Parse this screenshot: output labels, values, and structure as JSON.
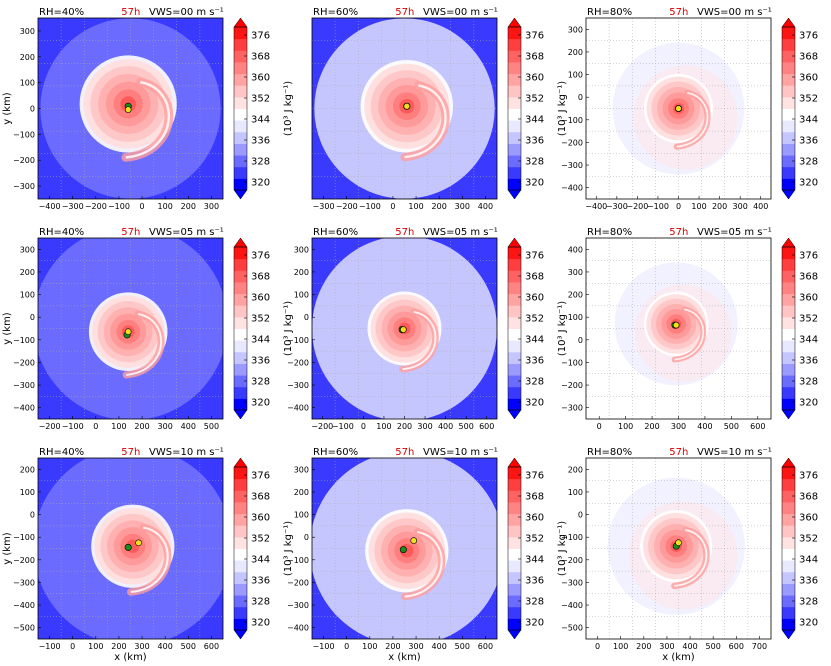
{
  "chart_data": {
    "type": "heatmap",
    "colorbar": {
      "ticks": [
        "376",
        "368",
        "360",
        "352",
        "344",
        "336",
        "328",
        "320"
      ],
      "vmin": 320,
      "vmax": 380,
      "label": "(10³ J kg⁻¹)",
      "colors": [
        "#0000ff",
        "#3a3aff",
        "#6b6bff",
        "#9a9aff",
        "#c6c6ff",
        "#e8e8ff",
        "#ffffff",
        "#ffe2e2",
        "#ffc4c4",
        "#ffa3a3",
        "#ff8383",
        "#ff6262",
        "#ff3f3f",
        "#ff1414"
      ]
    },
    "panels": [
      {
        "rh": "RH=40%",
        "time": "57h",
        "vws": "VWS=00 m s⁻¹",
        "xlim": [
          -400,
          400
        ],
        "ylim": [
          -400,
          400
        ],
        "xticks": [
          "−400",
          "−300",
          "−200",
          "−100",
          "0",
          "100",
          "200",
          "300"
        ],
        "yticks": [
          "300",
          "200",
          "100",
          "0",
          "−100",
          "−200",
          "−300"
        ],
        "ylabel": "y (km)",
        "xlabel": "",
        "background": "#6b6bff",
        "outer": {
          "cx": 0,
          "cy": 0,
          "r": 390
        },
        "core": {
          "cx": -10,
          "cy": 20,
          "r": 210
        },
        "center_green": [
          -10,
          10
        ],
        "center_yellow": [
          -10,
          -5
        ]
      },
      {
        "rh": "RH=60%",
        "time": "57h",
        "vws": "VWS=00 m s⁻¹",
        "xlim": [
          -400,
          400
        ],
        "ylim": [
          -400,
          400
        ],
        "xticks": [
          "−300",
          "−200",
          "−100",
          "0",
          "100",
          "200",
          "300",
          "400"
        ],
        "yticks": [],
        "ylabel": "",
        "xlabel": "",
        "background": "#c6c6ff",
        "outer": {
          "cx": 0,
          "cy": 0,
          "r": 390
        },
        "core": {
          "cx": 10,
          "cy": 10,
          "r": 200
        },
        "center_green": [
          10,
          10
        ],
        "center_yellow": [
          10,
          10
        ]
      },
      {
        "rh": "RH=80%",
        "time": "57h",
        "vws": "VWS=00 m s⁻¹",
        "xlim": [
          -400,
          400
        ],
        "ylim": [
          -400,
          400
        ],
        "xticks": [
          "−400",
          "−300",
          "−200",
          "−100",
          "0",
          "100",
          "200",
          "300",
          "400"
        ],
        "yticks": [
          "300",
          "200",
          "100",
          "0",
          "−100",
          "−200",
          "−300",
          "−400"
        ],
        "ylabel": "",
        "xlabel": "",
        "background": "#ffffff",
        "outer": {
          "cx": 0,
          "cy": 0,
          "r": 0
        },
        "core": {
          "cx": 0,
          "cy": 0,
          "r": 150
        },
        "center_green": [
          0,
          0
        ],
        "center_yellow": [
          0,
          0
        ]
      },
      {
        "rh": "RH=40%",
        "time": "57h",
        "vws": "VWS=05 m s⁻¹",
        "xlim": [
          -250,
          550
        ],
        "ylim": [
          -450,
          400
        ],
        "xticks": [
          "−200",
          "−100",
          "0",
          "100",
          "200",
          "300",
          "400",
          "500"
        ],
        "yticks": [
          "300",
          "200",
          "100",
          "0",
          "−100",
          "−200",
          "−300",
          "−400"
        ],
        "ylabel": "y (km)",
        "xlabel": "",
        "background": "#6b6bff",
        "outer": {
          "cx": 150,
          "cy": 0,
          "r": 420
        },
        "core": {
          "cx": 140,
          "cy": -40,
          "r": 170
        },
        "center_green": [
          135,
          -55
        ],
        "center_yellow": [
          140,
          -40
        ]
      },
      {
        "rh": "RH=60%",
        "time": "57h",
        "vws": "VWS=05 m s⁻¹",
        "xlim": [
          -200,
          600
        ],
        "ylim": [
          -420,
          380
        ],
        "xticks": [
          "−200",
          "−100",
          "0",
          "100",
          "200",
          "300",
          "400",
          "500",
          "600"
        ],
        "yticks": [
          "300",
          "200",
          "100",
          "0",
          "−100",
          "−200",
          "−300",
          "−400"
        ],
        "ylabel": "",
        "xlabel": "",
        "background": "#c6c6ff",
        "outer": {
          "cx": 200,
          "cy": -20,
          "r": 400
        },
        "core": {
          "cx": 200,
          "cy": -20,
          "r": 160
        },
        "center_green": [
          190,
          -25
        ],
        "center_yellow": [
          195,
          -25
        ]
      },
      {
        "rh": "RH=80%",
        "time": "57h",
        "vws": "VWS=05 m s⁻¹",
        "xlim": [
          -150,
          650
        ],
        "ylim": [
          -400,
          400
        ],
        "xticks": [
          "0",
          "100",
          "200",
          "300",
          "400",
          "500",
          "600"
        ],
        "yticks": [
          "400",
          "300",
          "200",
          "100",
          "0",
          "−100",
          "−200",
          "−300"
        ],
        "ylabel": "",
        "xlabel": "",
        "background": "#ffffff",
        "outer": {
          "cx": 0,
          "cy": 0,
          "r": 0
        },
        "core": {
          "cx": 240,
          "cy": 20,
          "r": 140
        },
        "center_green": [
          235,
          15
        ],
        "center_yellow": [
          240,
          15
        ]
      },
      {
        "rh": "RH=40%",
        "time": "57h",
        "vws": "VWS=10 m s⁻¹",
        "xlim": [
          -180,
          620
        ],
        "ylim": [
          -520,
          280
        ],
        "xticks": [
          "−100",
          "0",
          "100",
          "200",
          "300",
          "400",
          "500",
          "600"
        ],
        "yticks": [
          "200",
          "100",
          "0",
          "−100",
          "−200",
          "−300",
          "−400",
          "−500"
        ],
        "ylabel": "y (km)",
        "xlabel": "x (km)",
        "background": "#6b6bff",
        "outer": {
          "cx": 230,
          "cy": -110,
          "r": 430
        },
        "core": {
          "cx": 230,
          "cy": -110,
          "r": 180
        },
        "center_green": [
          210,
          -115
        ],
        "center_yellow": [
          255,
          -95
        ]
      },
      {
        "rh": "RH=60%",
        "time": "57h",
        "vws": "VWS=10 m s⁻¹",
        "xlim": [
          -130,
          670
        ],
        "ylim": [
          -480,
          320
        ],
        "xticks": [
          "−100",
          "0",
          "100",
          "200",
          "300",
          "400",
          "500",
          "600"
        ],
        "yticks": [
          "300",
          "200",
          "100",
          "0",
          "−100",
          "−200",
          "−300",
          "−400"
        ],
        "ylabel": "",
        "xlabel": "x (km)",
        "background": "#c6c6ff",
        "outer": {
          "cx": 280,
          "cy": -80,
          "r": 420
        },
        "core": {
          "cx": 280,
          "cy": -90,
          "r": 180
        },
        "center_green": [
          265,
          -85
        ],
        "center_yellow": [
          310,
          -45
        ]
      },
      {
        "rh": "RH=80%",
        "time": "57h",
        "vws": "VWS=10 m s⁻¹",
        "xlim": [
          -100,
          720
        ],
        "ylim": [
          -500,
          280
        ],
        "xticks": [
          "0",
          "100",
          "200",
          "300",
          "400",
          "500",
          "600",
          "700"
        ],
        "yticks": [
          "200",
          "100",
          "0",
          "−100",
          "−200",
          "−300",
          "−400",
          "−500"
        ],
        "ylabel": "",
        "xlabel": "x (km)",
        "background": "#ffffff",
        "outer": {
          "cx": 0,
          "cy": 0,
          "r": 0
        },
        "core": {
          "cx": 300,
          "cy": -100,
          "r": 160
        },
        "center_green": [
          300,
          -100
        ],
        "center_yellow": [
          310,
          -85
        ]
      }
    ]
  }
}
